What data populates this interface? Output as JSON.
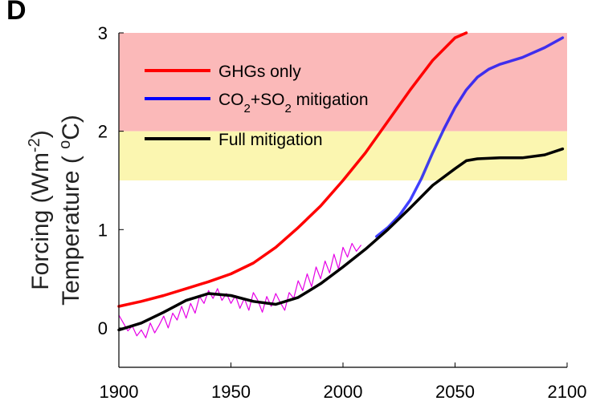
{
  "chart_data": {
    "type": "line",
    "panel_label": "D",
    "ylabel_line1": "Forcing (Wm",
    "ylabel_line1_sup": "-2",
    "ylabel_line1_end": ")",
    "ylabel_line2": "Temperature ( ",
    "ylabel_line2_sup": "o",
    "ylabel_line2_end": "C)",
    "xlim": [
      1900,
      2100
    ],
    "ylim": [
      -0.4,
      3
    ],
    "xticks": [
      1900,
      1950,
      2000,
      2050,
      2100
    ],
    "yticks": [
      0,
      1,
      2,
      3
    ],
    "grid": false,
    "legend_position": "top-left",
    "bands": [
      {
        "from": 2,
        "to": 3,
        "color": "#fbb9b9"
      },
      {
        "from": 1.5,
        "to": 2,
        "color": "#fbf6b0"
      }
    ],
    "legend": [
      {
        "label": "GHGs only",
        "color": "#ff0000"
      },
      {
        "label_main": "CO",
        "sub1": "2",
        "mid": "+SO",
        "sub2": "2",
        "tail": " mitigation",
        "color": "#0000ff"
      },
      {
        "label": "Full mitigation",
        "color": "#000000"
      }
    ],
    "series": [
      {
        "key": "ghg",
        "color": "#ff0000",
        "x": [
          1900,
          1910,
          1920,
          1930,
          1940,
          1950,
          1960,
          1970,
          1980,
          1990,
          2000,
          2010,
          2020,
          2030,
          2040,
          2050,
          2055
        ],
        "values": [
          0.22,
          0.27,
          0.33,
          0.4,
          0.47,
          0.55,
          0.66,
          0.82,
          1.02,
          1.24,
          1.5,
          1.78,
          2.1,
          2.42,
          2.72,
          2.95,
          3.0
        ]
      },
      {
        "key": "co2so2",
        "color": "#0000ff",
        "x": [
          2015,
          2020,
          2025,
          2030,
          2035,
          2040,
          2045,
          2050,
          2055,
          2060,
          2065,
          2070,
          2080,
          2090,
          2098
        ],
        "values": [
          0.93,
          1.02,
          1.14,
          1.3,
          1.52,
          1.78,
          2.02,
          2.24,
          2.42,
          2.55,
          2.63,
          2.68,
          2.75,
          2.85,
          2.95
        ]
      },
      {
        "key": "full",
        "color": "#000000",
        "x": [
          1900,
          1910,
          1920,
          1930,
          1940,
          1950,
          1960,
          1970,
          1980,
          1990,
          2000,
          2010,
          2020,
          2030,
          2040,
          2050,
          2055,
          2060,
          2070,
          2080,
          2090,
          2098
        ],
        "values": [
          -0.02,
          0.05,
          0.16,
          0.28,
          0.35,
          0.33,
          0.27,
          0.24,
          0.31,
          0.45,
          0.62,
          0.8,
          1.0,
          1.22,
          1.45,
          1.62,
          1.7,
          1.72,
          1.73,
          1.73,
          1.76,
          1.82
        ]
      },
      {
        "key": "observed",
        "color": "#e600e6",
        "x": [
          1900,
          1902,
          1904,
          1906,
          1908,
          1910,
          1912,
          1914,
          1916,
          1918,
          1920,
          1922,
          1924,
          1926,
          1928,
          1930,
          1932,
          1934,
          1936,
          1938,
          1940,
          1942,
          1944,
          1946,
          1948,
          1950,
          1952,
          1954,
          1956,
          1958,
          1960,
          1962,
          1964,
          1966,
          1968,
          1970,
          1972,
          1974,
          1976,
          1978,
          1980,
          1982,
          1984,
          1986,
          1988,
          1990,
          1992,
          1994,
          1996,
          1998,
          2000,
          2002,
          2004,
          2006,
          2008
        ],
        "values": [
          0.13,
          0.05,
          -0.03,
          0.02,
          -0.08,
          -0.02,
          -0.1,
          0.05,
          -0.05,
          0.03,
          0.12,
          0.0,
          0.15,
          0.08,
          0.22,
          0.1,
          0.25,
          0.15,
          0.32,
          0.25,
          0.38,
          0.3,
          0.4,
          0.28,
          0.35,
          0.25,
          0.33,
          0.2,
          0.3,
          0.18,
          0.36,
          0.28,
          0.16,
          0.32,
          0.22,
          0.35,
          0.26,
          0.18,
          0.36,
          0.3,
          0.48,
          0.38,
          0.55,
          0.42,
          0.62,
          0.5,
          0.68,
          0.56,
          0.75,
          0.6,
          0.82,
          0.72,
          0.86,
          0.78,
          0.84
        ]
      }
    ]
  }
}
